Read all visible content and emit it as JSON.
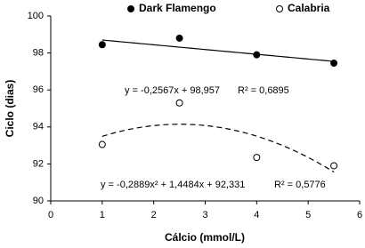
{
  "chart_data": {
    "type": "scatter",
    "x_label": "Cálcio (mmol/L)",
    "y_label": "Ciclo (dias)",
    "x": [
      1,
      2.5,
      4,
      5.5
    ],
    "xlim": [
      0,
      6
    ],
    "xticks": [
      0,
      1,
      2,
      3,
      4,
      5,
      6
    ],
    "ylim": [
      90,
      100
    ],
    "yticks": [
      90,
      92,
      94,
      96,
      98,
      100
    ],
    "grid": false,
    "series": [
      {
        "name": "Dark Flamengo",
        "color": "#000000",
        "marker": "filled",
        "values": [
          98.45,
          98.8,
          97.9,
          97.45
        ],
        "trendline": {
          "type": "linear",
          "style": "solid",
          "coefficients": [
            -0.2567,
            98.957
          ],
          "equation": "y = -0,2567x + 98,957",
          "r2_label": "R² = 0,6895"
        }
      },
      {
        "name": "Calabria",
        "color": "#000000",
        "marker": "open",
        "values": [
          93.05,
          95.3,
          92.35,
          91.9
        ],
        "trendline": {
          "type": "quadratic",
          "style": "dashed",
          "coefficients": [
            -0.2889,
            1.4484,
            92.331
          ],
          "equation": "y = -0,2889x² + 1,4484x + 92,331",
          "r2_label": "R² = 0,5776"
        }
      }
    ]
  }
}
